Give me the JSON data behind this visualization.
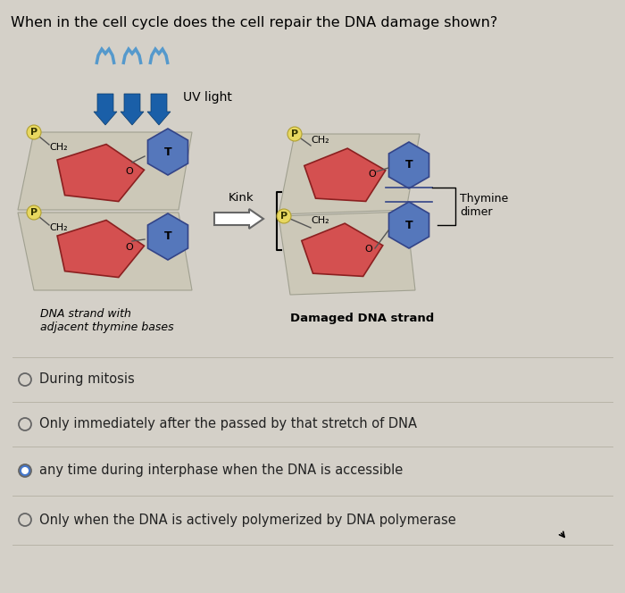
{
  "title": "When in the cell cycle does the cell repair the DNA damage shown?",
  "bg_color": "#d4d0c8",
  "diagram_bg": "#e8e4dc",
  "title_fontsize": 11.5,
  "options": [
    {
      "text": "During mitosis",
      "selected": false
    },
    {
      "text": "Only immediately after the passed by that stretch of DNA",
      "selected": false
    },
    {
      "text": "any time during interphase when the DNA is accessible",
      "selected": true
    },
    {
      "text": "Only when the DNA is actively polymerized by DNA polymerase",
      "selected": false
    }
  ],
  "option_fontsize": 10.5,
  "uv_label": "UV light",
  "kink_label": "Kink",
  "thymine_dimer_label": "Thymine\ndimer",
  "left_caption_line1": "DNA strand with",
  "left_caption_line2": "adjacent thymine bases",
  "right_caption": "Damaged DNA strand",
  "uv_arrow_color": "#1a5fa8",
  "uv_wave_color": "#5599cc",
  "pentagon_color": "#d45050",
  "pentagon_edge": "#8B2020",
  "hexagon_color": "#5577bb",
  "hexagon_edge": "#334488",
  "p_label_color": "#c8b840",
  "p_label_bg": "#e8d860",
  "backbone_color": "#d0ccc0",
  "backbone_edge": "#a0a090",
  "label_P": "P",
  "label_CH2": "CH₂",
  "label_O": "O",
  "label_T": "T",
  "selected_dot_color": "#4477cc",
  "radio_edge_color": "#666666",
  "divider_color": "#b8b4a8",
  "option_text_color": "#222222"
}
